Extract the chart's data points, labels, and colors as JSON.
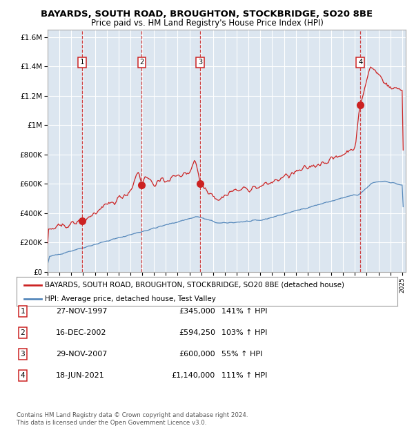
{
  "title1": "BAYARDS, SOUTH ROAD, BROUGHTON, STOCKBRIDGE, SO20 8BE",
  "title2": "Price paid vs. HM Land Registry's House Price Index (HPI)",
  "sales": [
    {
      "num": 1,
      "date_year": 1997.91,
      "price": 345000,
      "label": "27-NOV-1997",
      "pct": "141% ↑ HPI"
    },
    {
      "num": 2,
      "date_year": 2002.96,
      "price": 594250,
      "label": "16-DEC-2002",
      "pct": "103% ↑ HPI"
    },
    {
      "num": 3,
      "date_year": 2007.91,
      "price": 600000,
      "label": "29-NOV-2007",
      "pct": "55% ↑ HPI"
    },
    {
      "num": 4,
      "date_year": 2021.46,
      "price": 1140000,
      "label": "18-JUN-2021",
      "pct": "111% ↑ HPI"
    }
  ],
  "legend_property": "BAYARDS, SOUTH ROAD, BROUGHTON, STOCKBRIDGE, SO20 8BE (detached house)",
  "legend_hpi": "HPI: Average price, detached house, Test Valley",
  "footer": "Contains HM Land Registry data © Crown copyright and database right 2024.\nThis data is licensed under the Open Government Licence v3.0.",
  "red_color": "#cc2222",
  "blue_color": "#5588bb",
  "bg_color": "#dce6f0",
  "grid_color": "#ffffff",
  "ylim": [
    0,
    1650000
  ],
  "yticks": [
    0,
    200000,
    400000,
    600000,
    800000,
    1000000,
    1200000,
    1400000,
    1600000
  ],
  "xmin": 1995,
  "xmax": 2025.3
}
